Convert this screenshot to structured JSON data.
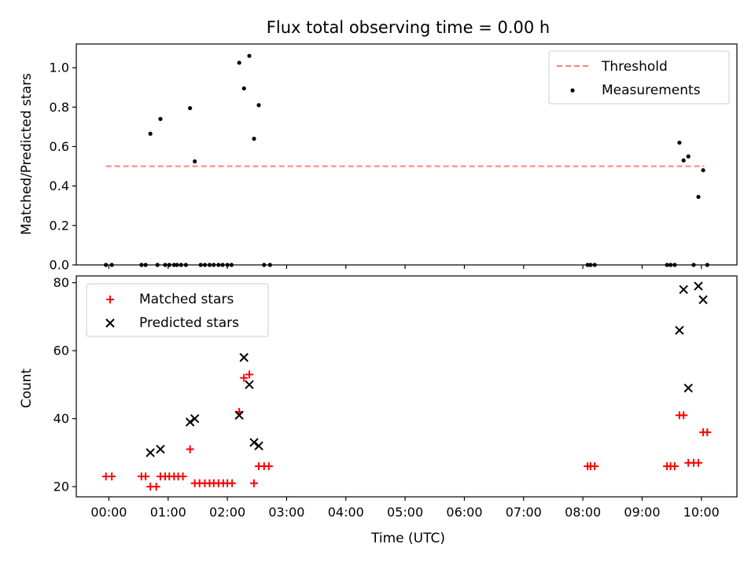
{
  "chart_data": [
    {
      "type": "scatter",
      "title": "Flux total observing time = 0.00 h",
      "xlabel": "",
      "ylabel": "Matched/Predicted stars",
      "xlim": [
        -0.55,
        10.6
      ],
      "ylim": [
        0,
        1.12
      ],
      "yticks": [
        "0.0",
        "0.2",
        "0.4",
        "0.6",
        "0.8",
        "1.0"
      ],
      "yticks_values": [
        0,
        0.2,
        0.4,
        0.6,
        0.8,
        1.0
      ],
      "grid": false,
      "legend_position": "top-right",
      "threshold": {
        "name": "Threshold",
        "value": 0.5,
        "x_range": [
          -0.05,
          10.05
        ],
        "color": "#ff7f7f"
      },
      "series": [
        {
          "name": "Measurements",
          "color": "#000000",
          "x": [
            -0.05,
            0.05,
            0.55,
            0.62,
            0.7,
            0.82,
            0.87,
            0.95,
            1.02,
            1.1,
            1.15,
            1.22,
            1.3,
            1.37,
            1.45,
            1.55,
            1.62,
            1.7,
            1.77,
            1.85,
            1.92,
            2.0,
            2.07,
            2.2,
            2.28,
            2.37,
            2.45,
            2.53,
            2.62,
            2.72,
            8.08,
            8.13,
            8.2,
            9.42,
            9.48,
            9.55,
            9.63,
            9.7,
            9.78,
            9.87,
            9.95,
            10.03,
            10.1
          ],
          "y": [
            0,
            0,
            0,
            0,
            0.665,
            0,
            0.74,
            0,
            0,
            0,
            0,
            0,
            0,
            0.795,
            0.525,
            0,
            0,
            0,
            0,
            0,
            0,
            0,
            0,
            1.025,
            0.895,
            1.06,
            0.64,
            0.81,
            0,
            0,
            0,
            0,
            0,
            0,
            0,
            0,
            0.62,
            0.53,
            0.55,
            0,
            0.345,
            0.48,
            0
          ]
        }
      ]
    },
    {
      "type": "scatter",
      "title": "",
      "xlabel": "Time (UTC)",
      "ylabel": "Count",
      "xlim": [
        -0.55,
        10.6
      ],
      "ylim": [
        17,
        82
      ],
      "yticks": [
        "20",
        "40",
        "60",
        "80"
      ],
      "yticks_values": [
        20,
        40,
        60,
        80
      ],
      "xticks": [
        "00:00",
        "01:00",
        "02:00",
        "03:00",
        "04:00",
        "05:00",
        "06:00",
        "07:00",
        "08:00",
        "09:00",
        "10:00"
      ],
      "xticks_values": [
        0,
        1,
        2,
        3,
        4,
        5,
        6,
        7,
        8,
        9,
        10
      ],
      "grid": false,
      "legend_position": "top-left",
      "series": [
        {
          "name": "Matched stars",
          "marker": "+",
          "color": "#ff0000",
          "x": [
            -0.05,
            0.05,
            0.55,
            0.62,
            0.7,
            0.8,
            0.87,
            0.95,
            1.02,
            1.1,
            1.17,
            1.25,
            1.37,
            1.45,
            1.53,
            1.62,
            1.7,
            1.77,
            1.85,
            1.93,
            2.0,
            2.08,
            2.2,
            2.28,
            2.37,
            2.45,
            2.53,
            2.62,
            2.7,
            8.08,
            8.13,
            8.2,
            9.42,
            9.48,
            9.55,
            9.63,
            9.7,
            9.78,
            9.87,
            9.95,
            10.03,
            10.1
          ],
          "y": [
            23,
            23,
            23,
            23,
            20,
            20,
            23,
            23,
            23,
            23,
            23,
            23,
            31,
            21,
            21,
            21,
            21,
            21,
            21,
            21,
            21,
            21,
            42,
            52,
            53,
            21,
            26,
            26,
            26,
            26,
            26,
            26,
            26,
            26,
            26,
            41,
            41,
            27,
            27,
            27,
            36,
            36
          ]
        },
        {
          "name": "Predicted stars",
          "marker": "x",
          "color": "#000000",
          "x": [
            0.7,
            0.87,
            1.37,
            1.45,
            2.2,
            2.28,
            2.37,
            2.45,
            2.53,
            9.63,
            9.7,
            9.78,
            9.95,
            10.03
          ],
          "y": [
            30,
            31,
            39,
            40,
            41,
            58,
            50,
            33,
            32,
            66,
            78,
            49,
            79,
            75
          ]
        }
      ]
    }
  ]
}
